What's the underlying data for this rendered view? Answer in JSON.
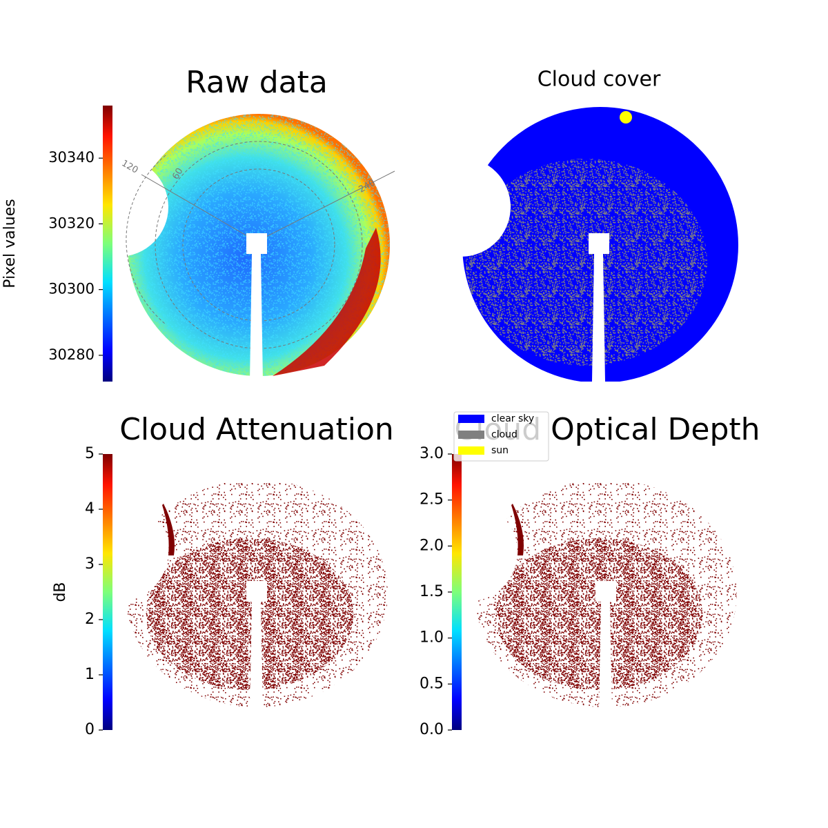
{
  "chart_data": [
    {
      "type": "image",
      "title": "Raw data",
      "colorbar_label": "Pixel values",
      "ylim": [
        30272,
        30356
      ],
      "yticks": [
        30280,
        30300,
        30320,
        30340
      ],
      "polar_labels": [
        120,
        60,
        240
      ]
    },
    {
      "type": "image",
      "title": "Cloud cover",
      "series": [
        {
          "name": "clear sky",
          "color": "#0000ff"
        },
        {
          "name": "cloud",
          "color": "#808080"
        },
        {
          "name": "sun",
          "color": "#ffff00"
        }
      ]
    },
    {
      "type": "image",
      "title": "Cloud Attenuation",
      "colorbar_label": "dB",
      "ylim": [
        0,
        5
      ],
      "yticks": [
        0,
        1,
        2,
        3,
        4,
        5
      ]
    },
    {
      "type": "image",
      "title": "Cloud Optical Depth",
      "ylim": [
        0,
        3
      ],
      "yticks": [
        {
          "value": 0,
          "label": "0.0"
        },
        0.5,
        {
          "value": 1,
          "label": "1.0"
        },
        1.5,
        {
          "value": 2,
          "label": "2.0"
        },
        2.5,
        {
          "value": 3,
          "label": "3.0"
        }
      ]
    }
  ]
}
